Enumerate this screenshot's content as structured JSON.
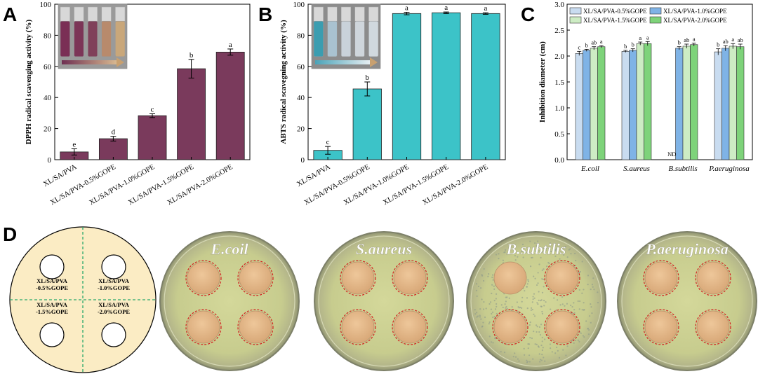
{
  "panels": {
    "A": "A",
    "B": "B",
    "C": "C",
    "D": "D"
  },
  "chart_data": [
    {
      "id": "A",
      "type": "bar",
      "title": "",
      "ylabel": "DPPH radical scavenging activity (%)",
      "xlabel": "",
      "ylim": [
        0,
        100
      ],
      "yticks": [
        0,
        20,
        40,
        60,
        80,
        100
      ],
      "categories": [
        "XL/SA/PVA",
        "XL/SA/PVA-0.5%GOPE",
        "XL/SA/PVA-1.0%GOPE",
        "XL/SA/PVA-1.5%GOPE",
        "XL/SA/PVA-2.0%GOPE"
      ],
      "values": [
        5.0,
        13.5,
        28.3,
        58.5,
        69.2
      ],
      "errors": [
        2.0,
        1.5,
        1.2,
        6.0,
        2.0
      ],
      "significance": [
        "e",
        "d",
        "c",
        "b",
        "a"
      ],
      "color": "#7a3a5c",
      "grid": false,
      "inset": "photo of five vials, purple fading to pale yellow, with gradient arrow"
    },
    {
      "id": "B",
      "type": "bar",
      "title": "",
      "ylabel": "ABTS radical scavegning activity (%)",
      "xlabel": "",
      "ylim": [
        0,
        100
      ],
      "yticks": [
        0,
        20,
        40,
        60,
        80,
        100
      ],
      "categories": [
        "XL/SA/PVA",
        "XL/SA/PVA-0.5%GOPE",
        "XL/SA/PVA-1.0%GOPE",
        "XL/SA/PVA-1.5%GOPE",
        "XL/SA/PVA-2.0%GOPE"
      ],
      "values": [
        6.0,
        45.5,
        94.0,
        94.5,
        94.0
      ],
      "errors": [
        2.5,
        4.5,
        0.8,
        0.5,
        0.5
      ],
      "significance": [
        "c",
        "b",
        "a",
        "a",
        "a"
      ],
      "color": "#3cc3c8",
      "grid": false,
      "inset": "photo of five vials, blue fading to clear, with gradient arrow"
    },
    {
      "id": "C",
      "type": "bar",
      "title": "",
      "ylabel": "Inhibition diameter (cm)",
      "xlabel": "",
      "ylim": [
        0.0,
        3.0
      ],
      "yticks": [
        0.0,
        0.5,
        1.0,
        1.5,
        2.0,
        2.5,
        3.0
      ],
      "categories": [
        "E.coil",
        "S.aureus",
        "B.subtilis",
        "P.aeruginosa"
      ],
      "legend_position": "top",
      "series": [
        {
          "name": "XL/SA/PVA-0.5%GOPE",
          "color": "#c9dcf0",
          "values": [
            2.05,
            2.09,
            null,
            2.08
          ],
          "errors": [
            0.04,
            0.02,
            null,
            0.06
          ],
          "significance": [
            "c",
            "b",
            "",
            "b"
          ]
        },
        {
          "name": "XL/SA/PVA-1.0%GOPE",
          "color": "#7fb3e6",
          "values": [
            2.11,
            2.11,
            2.15,
            2.15
          ],
          "errors": [
            0.02,
            0.03,
            0.03,
            0.05
          ],
          "significance": [
            "b",
            "b",
            "b",
            "ab"
          ]
        },
        {
          "name": "XL/SA/PVA-1.5%GOPE",
          "color": "#cdecc4",
          "values": [
            2.15,
            2.24,
            2.19,
            2.19
          ],
          "errors": [
            0.03,
            0.03,
            0.04,
            0.05
          ],
          "significance": [
            "ab",
            "a",
            "ab",
            "a"
          ]
        },
        {
          "name": "XL/SA/PVA-2.0%GOPE",
          "color": "#7ed37a",
          "values": [
            2.18,
            2.24,
            2.22,
            2.18
          ],
          "errors": [
            0.02,
            0.04,
            0.03,
            0.05
          ],
          "significance": [
            "a",
            "a",
            "a",
            "ab"
          ]
        }
      ],
      "annotations": [
        {
          "category": "B.subtilis",
          "series": "XL/SA/PVA-0.5%GOPE",
          "text": "ND"
        }
      ]
    }
  ],
  "diagram": {
    "quadrants": [
      {
        "line1": "XL/SA/PVA",
        "line2": "-0.5%GOPE"
      },
      {
        "line1": "XL/SA/PVA",
        "line2": "-1.0%GOPE"
      },
      {
        "line1": "XL/SA/PVA",
        "line2": "-1.5%GOPE"
      },
      {
        "line1": "XL/SA/PVA",
        "line2": "-2.0%GOPE"
      }
    ],
    "background_color": "#fbecc4"
  },
  "plates": [
    {
      "title": "E.coil",
      "zones": [
        true,
        true,
        true,
        true
      ]
    },
    {
      "title": "S.aureus",
      "zones": [
        true,
        true,
        true,
        true
      ]
    },
    {
      "title": "B.subtilis",
      "zones": [
        false,
        true,
        true,
        true
      ]
    },
    {
      "title": "P.aeruginosa",
      "zones": [
        true,
        true,
        true,
        true
      ]
    }
  ]
}
